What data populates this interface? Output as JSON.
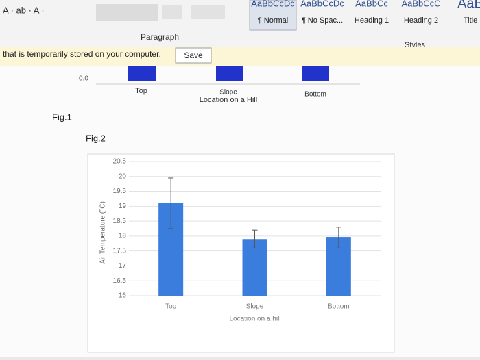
{
  "ribbon": {
    "styles": [
      {
        "preview": "AaBbCcDc",
        "name": "¶ Normal"
      },
      {
        "preview": "AaBbCcDc",
        "name": "¶ No Spac..."
      },
      {
        "preview": "AaBbCc",
        "name": "Heading 1"
      },
      {
        "preview": "AaBbCcC",
        "name": "Heading 2"
      },
      {
        "preview": "AaB",
        "name": "Title"
      }
    ],
    "paragraph_group": "Paragraph",
    "styles_group": "Styles"
  },
  "message": {
    "text": "that is temporarily stored on your computer.",
    "button": "Save"
  },
  "fig1": {
    "label": "Fig.1",
    "ytick": "0.0",
    "categories": [
      "Top",
      "Slope",
      "Bottom"
    ],
    "xlabel": "Location on a Hill"
  },
  "fig2_label": "Fig.2",
  "chart_data": {
    "type": "bar",
    "categories": [
      "Top",
      "Slope",
      "Bottom"
    ],
    "values": [
      19.1,
      17.9,
      17.95
    ],
    "errors": [
      0.85,
      0.3,
      0.35
    ],
    "color": "#3b7ddd",
    "ylabel": "Air Temperature (°C)",
    "xlabel": "Location on a hill",
    "ylim": [
      16,
      20.5
    ],
    "yticks": [
      16,
      16.5,
      17,
      17.5,
      18,
      18.5,
      19,
      19.5,
      20,
      20.5
    ],
    "grid": true
  }
}
